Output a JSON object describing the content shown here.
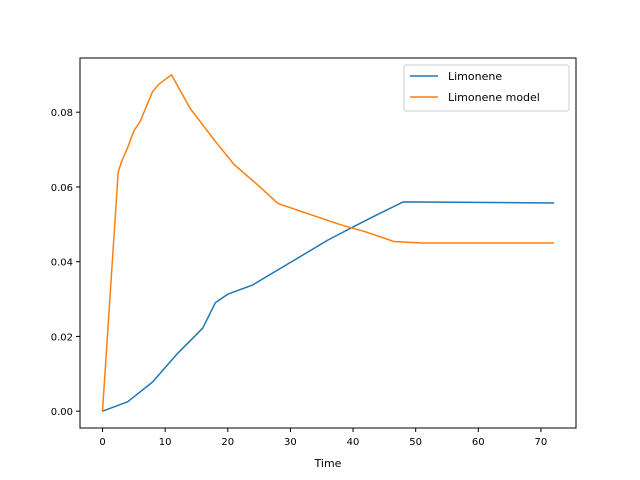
{
  "chart_data": {
    "type": "line",
    "title": "",
    "xlabel": "Time",
    "ylabel": "",
    "xlim": [
      -3.6,
      75.6
    ],
    "ylim": [
      -0.0045,
      0.0945
    ],
    "xticks": [
      0,
      10,
      20,
      30,
      40,
      50,
      60,
      70
    ],
    "yticks": [
      0.0,
      0.02,
      0.04,
      0.06,
      0.08
    ],
    "ytick_labels": [
      "0.00",
      "0.02",
      "0.04",
      "0.06",
      "0.08"
    ],
    "grid": false,
    "legend_position": "top-right",
    "series": [
      {
        "name": "Limonene",
        "color": "#1f77b4",
        "x": [
          0,
          4,
          8,
          12,
          16,
          18,
          20,
          24,
          28,
          32,
          36,
          40,
          44,
          48,
          72
        ],
        "y": [
          0.0,
          0.0025,
          0.0078,
          0.0155,
          0.0222,
          0.029,
          0.0313,
          0.0338,
          0.0378,
          0.0418,
          0.0458,
          0.0493,
          0.0527,
          0.056,
          0.0557
        ]
      },
      {
        "name": "Limonene model",
        "color": "#ff7f0e",
        "x": [
          0,
          2.5,
          3,
          4,
          5,
          6,
          8,
          9,
          11,
          14,
          18,
          21,
          25,
          28,
          32,
          38,
          42,
          46.5,
          51,
          72
        ],
        "y": [
          0.0,
          0.064,
          0.0665,
          0.0705,
          0.075,
          0.0775,
          0.0855,
          0.0875,
          0.09,
          0.081,
          0.0722,
          0.066,
          0.0602,
          0.0556,
          0.0533,
          0.0499,
          0.048,
          0.0454,
          0.045,
          0.045
        ]
      }
    ]
  }
}
